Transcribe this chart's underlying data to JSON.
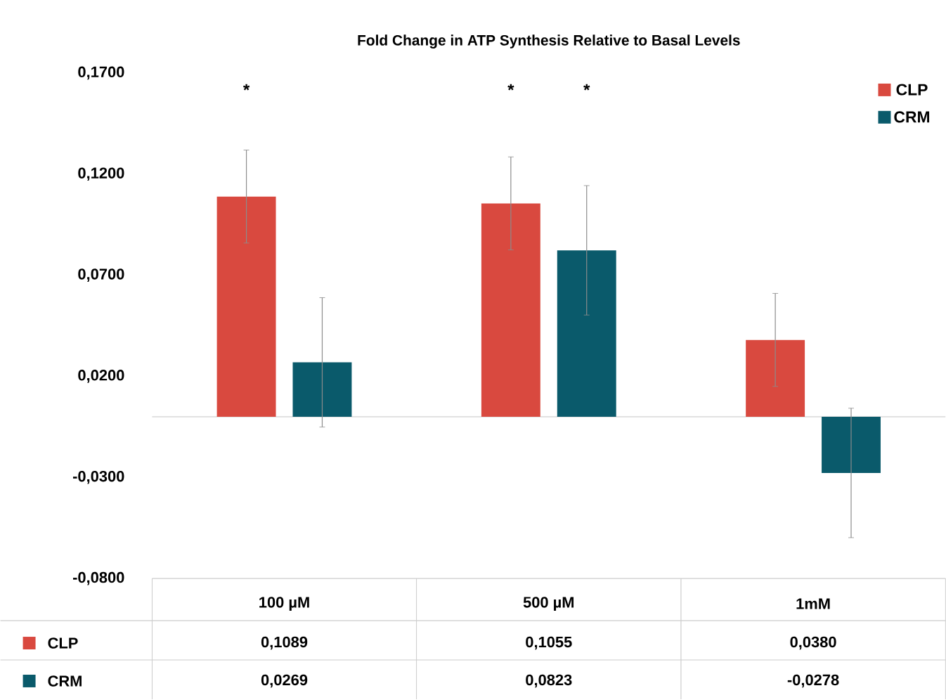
{
  "chart_data": {
    "type": "bar",
    "title": "Fold Change in ATP Synthesis Relative to Basal Levels",
    "categories": [
      "100 µM",
      "500 µM",
      "1mM"
    ],
    "series": [
      {
        "name": "CLP",
        "color": "#d9493f",
        "values": [
          0.1089,
          0.1055,
          0.038
        ],
        "value_labels": [
          "0,1089",
          "0,1055",
          "0,0380"
        ],
        "errors": [
          0.023,
          0.023,
          0.023
        ]
      },
      {
        "name": "CRM",
        "color": "#0a5a6b",
        "values": [
          0.0269,
          0.0823,
          -0.0278
        ],
        "value_labels": [
          "0,0269",
          "0,0823",
          "-0,0278"
        ],
        "errors": [
          0.032,
          0.032,
          0.032
        ]
      }
    ],
    "ylim": [
      -0.08,
      0.17
    ],
    "yticks": [
      {
        "value": -0.08,
        "label": "-0,0800"
      },
      {
        "value": -0.03,
        "label": "-0,0300"
      },
      {
        "value": 0.02,
        "label": "0,0200"
      },
      {
        "value": 0.07,
        "label": "0,0700"
      },
      {
        "value": 0.12,
        "label": "0,1200"
      },
      {
        "value": 0.17,
        "label": "0,1700"
      }
    ],
    "annotations": [
      "*",
      "*",
      "*"
    ],
    "legend": "top right",
    "grid": false
  }
}
